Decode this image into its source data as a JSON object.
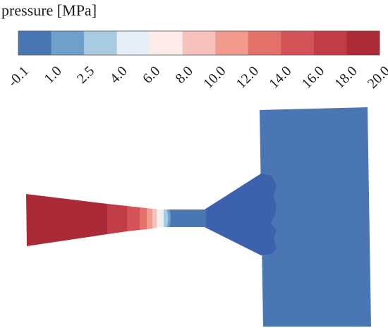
{
  "legend": {
    "title": "pressure [MPa]",
    "tick_labels": [
      "-0.1",
      "1.0",
      "2.5",
      "4.0",
      "6.0",
      "8.0",
      "10.0",
      "12.0",
      "14.0",
      "16.0",
      "18.0",
      "20.0"
    ],
    "bin_colors": [
      "#4a77b4",
      "#6fa0cb",
      "#a9cbe1",
      "#e6eff7",
      "#fdecea",
      "#f7c2bc",
      "#f19a8d",
      "#e4726a",
      "#d45358",
      "#c23c45",
      "#ac2b38"
    ]
  },
  "colors": {
    "bulk_blue": "#4a77b4",
    "diverging_blue": "#3d62ad",
    "converging_red": "#aa2a37"
  }
}
